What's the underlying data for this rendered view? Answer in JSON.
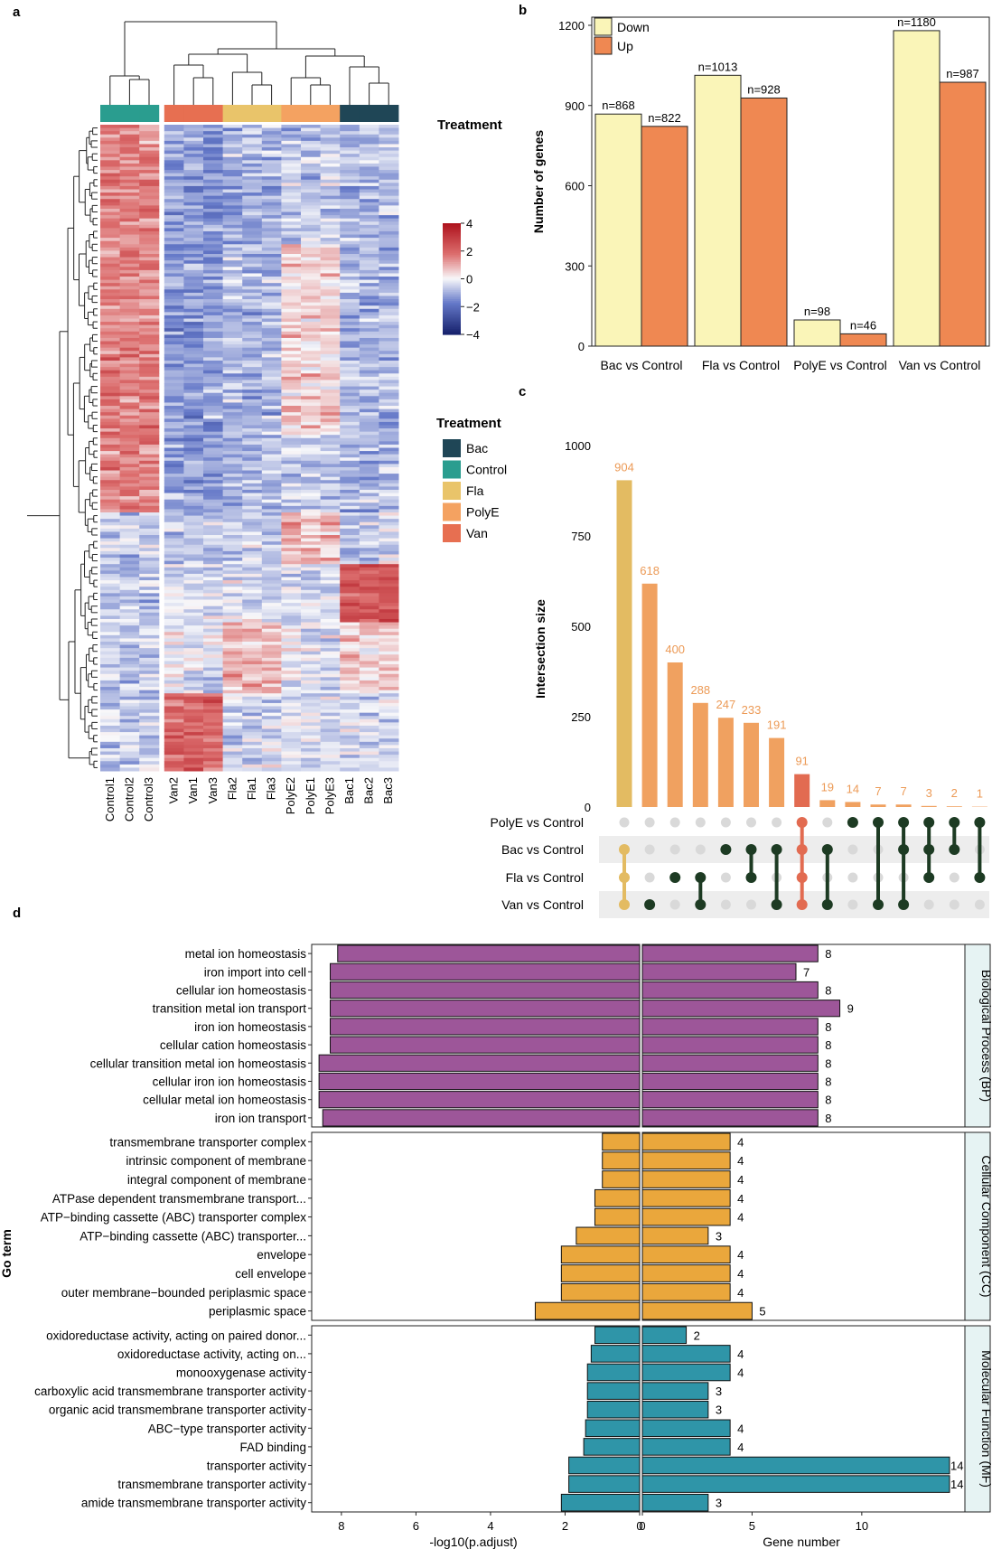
{
  "panel_labels": [
    "a",
    "b",
    "c",
    "d"
  ],
  "colors": {
    "Bac": "#1f4656",
    "Control": "#2a9d8f",
    "Fla": "#e9c46a",
    "PolyE": "#f4a261",
    "Van": "#e76f51",
    "down": "#faf5b8",
    "up": "#ef8852",
    "upset_gold": "#e3bb62",
    "upset_orange": "#f0a160",
    "upset_red": "#e26b51",
    "upset_dot": "#1d3b23",
    "upset_label": "#ec9a56",
    "bp": "#9d5699",
    "cc": "#eaa73c",
    "mf": "#2f95a8",
    "strip": "#e6f3f3"
  },
  "chart_data": [
    {
      "type": "heatmap",
      "panel": "a",
      "annotation_title": "Treatment",
      "columns": [
        "Control1",
        "Control2",
        "Control3",
        "Van2",
        "Van1",
        "Van3",
        "Fla2",
        "Fla1",
        "Fla3",
        "PolyE2",
        "PolyE1",
        "PolyE3",
        "Bac1",
        "Bac2",
        "Bac3"
      ],
      "column_groups": [
        "Control",
        "Control",
        "Control",
        "Van",
        "Van",
        "Van",
        "Fla",
        "Fla",
        "Fla",
        "PolyE",
        "PolyE",
        "PolyE",
        "Bac",
        "Bac",
        "Bac"
      ],
      "colorbar_ticks": [
        "4",
        "2",
        "0",
        "−2",
        "−4"
      ],
      "colorbar_range": [
        -4,
        4
      ],
      "legend_title": "Treatment",
      "legend_items": [
        "Bac",
        "Control",
        "Fla",
        "PolyE",
        "Van"
      ]
    },
    {
      "type": "bar",
      "panel": "b",
      "categories": [
        "Bac vs Control",
        "Fla vs Control",
        "PolyE vs Control",
        "Van vs Control"
      ],
      "series": [
        {
          "name": "Down",
          "values": [
            868,
            1013,
            98,
            1180
          ]
        },
        {
          "name": "Up",
          "values": [
            822,
            928,
            46,
            987
          ]
        }
      ],
      "data_labels": {
        "Down": [
          "n=868",
          "n=1013",
          "n=98",
          "n=1180"
        ],
        "Up": [
          "n=822",
          "n=928",
          "n=46",
          "n=987"
        ]
      },
      "ylabel": "Number of genes",
      "ylim": [
        0,
        1200
      ],
      "yticks": [
        0,
        300,
        600,
        900,
        1200
      ],
      "legend_position": "top-left"
    },
    {
      "type": "bar",
      "panel": "c",
      "ylabel": "Intersection size",
      "ylim": [
        0,
        1000
      ],
      "yticks": [
        0,
        250,
        500,
        750,
        1000
      ],
      "values": [
        904,
        618,
        400,
        288,
        247,
        233,
        191,
        91,
        19,
        14,
        7,
        7,
        3,
        2,
        1
      ],
      "bar_colors": [
        "gold",
        "orange",
        "orange",
        "orange",
        "orange",
        "orange",
        "orange",
        "red",
        "orange",
        "orange",
        "orange",
        "orange",
        "orange",
        "orange",
        "orange"
      ],
      "sets": [
        "PolyE vs Control",
        "Bac vs Control",
        "Fla vs Control",
        "Van vs Control"
      ],
      "membership": [
        [
          1,
          2,
          3
        ],
        [
          3
        ],
        [
          2
        ],
        [
          2,
          3
        ],
        [
          1
        ],
        [
          1,
          2
        ],
        [
          1,
          3
        ],
        [
          0,
          1,
          2,
          3
        ],
        [
          1,
          3
        ],
        [
          0
        ],
        [
          0,
          3
        ],
        [
          0,
          1,
          3
        ],
        [
          0,
          1,
          2
        ],
        [
          0,
          1
        ],
        [
          0,
          2
        ]
      ]
    },
    {
      "type": "bar",
      "panel": "d",
      "orientation": "horizontal",
      "ylabel": "Go term",
      "xlabel_left": "-log10(p.adjust)",
      "xlabel_right": "Gene number",
      "xlim_left": [
        0,
        8.7
      ],
      "xticks_left": [
        8,
        6,
        4,
        2,
        0
      ],
      "xlim_right": [
        0,
        14.7
      ],
      "xticks_right": [
        0,
        5,
        10
      ],
      "groups": [
        {
          "name": "Biological Process (BP)",
          "terms": [
            "metal ion homeostasis",
            "iron import into cell",
            "cellular ion homeostasis",
            "transition metal ion transport",
            "iron ion homeostasis",
            "cellular cation homeostasis",
            "cellular transition metal ion homeostasis",
            "cellular iron ion homeostasis",
            "cellular metal ion homeostasis",
            "iron ion transport"
          ],
          "neg_log10_padj": [
            8.1,
            8.3,
            8.3,
            8.3,
            8.3,
            8.3,
            8.6,
            8.6,
            8.6,
            8.5
          ],
          "gene_number": [
            8,
            7,
            8,
            9,
            8,
            8,
            8,
            8,
            8,
            8
          ]
        },
        {
          "name": "Cellular Component (CC)",
          "terms": [
            "transmembrane transporter complex",
            "intrinsic component of membrane",
            "integral component of membrane",
            "ATPase dependent transmembrane transport...",
            "ATP−binding cassette (ABC) transporter complex",
            "ATP−binding cassette (ABC) transporter...",
            "envelope",
            "cell envelope",
            "outer membrane−bounded periplasmic space",
            "periplasmic space"
          ],
          "neg_log10_padj": [
            1.0,
            1.0,
            1.0,
            1.2,
            1.2,
            1.7,
            2.1,
            2.1,
            2.1,
            2.8
          ],
          "gene_number": [
            4,
            4,
            4,
            4,
            4,
            3,
            4,
            4,
            4,
            5
          ]
        },
        {
          "name": "Molecular Function (MF)",
          "terms": [
            "oxidoreductase activity, acting on paired donor...",
            "oxidoreductase activity, acting on...",
            "monooxygenase activity",
            "carboxylic acid transmembrane transporter activity",
            "organic acid transmembrane transporter activity",
            "ABC−type transporter activity",
            "FAD binding",
            "transporter activity",
            "transmembrane transporter activity",
            "amide transmembrane transporter activity"
          ],
          "neg_log10_padj": [
            1.2,
            1.3,
            1.4,
            1.4,
            1.4,
            1.45,
            1.5,
            1.9,
            1.9,
            2.1
          ],
          "gene_number": [
            2,
            4,
            4,
            3,
            3,
            4,
            4,
            14,
            14,
            3
          ]
        }
      ]
    }
  ]
}
